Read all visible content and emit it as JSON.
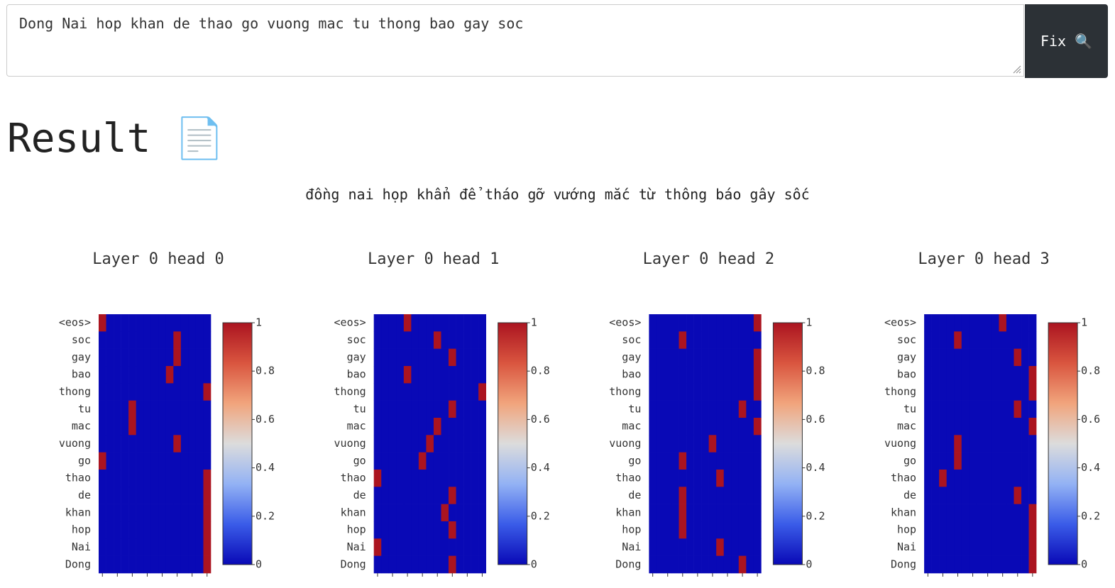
{
  "input": {
    "text": "Dong Nai hop khan de thao go vuong mac tu thong bao gay soc"
  },
  "button": {
    "label": "Fix 🔍"
  },
  "result": {
    "heading": "Result 📄",
    "text": "đồng nai họp khẩn để tháo gỡ vướng mắc từ thông báo gây sốc"
  },
  "colormap": [
    "#0909b6",
    "#3a5ce8",
    "#93b2f4",
    "#dcdcdc",
    "#f1a47c",
    "#d9553f",
    "#ab1420"
  ],
  "chart_data": [
    {
      "type": "heatmap",
      "title": "Layer 0 head 0",
      "y_categories": [
        "<eos>",
        "soc",
        "gay",
        "bao",
        "thong",
        "tu",
        "mac",
        "vuong",
        "go",
        "thao",
        "de",
        "khan",
        "hop",
        "Nai",
        "Dong"
      ],
      "values": [
        [
          1,
          0,
          0,
          0,
          0,
          0,
          0,
          0,
          0,
          0,
          0,
          0,
          0,
          0,
          0
        ],
        [
          0,
          0,
          0,
          0,
          0,
          0,
          0,
          0,
          0,
          0,
          1,
          0,
          0,
          0,
          0
        ],
        [
          0,
          0,
          0,
          0,
          0,
          0,
          0,
          0,
          0,
          0,
          1,
          0,
          0,
          0,
          0
        ],
        [
          0,
          0,
          0,
          0,
          0,
          0,
          0,
          0,
          0,
          1,
          0,
          0,
          0,
          0,
          0
        ],
        [
          0,
          0,
          0,
          0,
          0,
          0,
          0,
          0,
          0,
          0,
          0,
          0,
          0,
          0,
          1
        ],
        [
          0,
          0,
          0,
          0,
          1,
          0,
          0,
          0,
          0,
          0,
          0,
          0,
          0,
          0,
          0
        ],
        [
          0,
          0,
          0,
          0,
          1,
          0,
          0,
          0,
          0,
          0,
          0,
          0,
          0,
          0,
          0
        ],
        [
          0,
          0,
          0,
          0,
          0,
          0,
          0,
          0,
          0,
          0,
          1,
          0,
          0,
          0,
          0
        ],
        [
          1,
          0,
          0,
          0,
          0,
          0,
          0,
          0,
          0,
          0,
          0,
          0,
          0,
          0,
          0
        ],
        [
          0,
          0,
          0,
          0,
          0,
          0,
          0,
          0,
          0,
          0,
          0,
          0,
          0,
          0,
          1
        ],
        [
          0,
          0,
          0,
          0,
          0,
          0,
          0,
          0,
          0,
          0,
          0,
          0,
          0,
          0,
          1
        ],
        [
          0,
          0,
          0,
          0,
          0,
          0,
          0,
          0,
          0,
          0,
          0,
          0,
          0,
          0,
          1
        ],
        [
          0,
          0,
          0,
          0,
          0,
          0,
          0,
          0,
          0,
          0,
          0,
          0,
          0,
          0,
          1
        ],
        [
          0,
          0,
          0,
          0,
          0,
          0,
          0,
          0,
          0,
          0,
          0,
          0,
          0,
          0,
          1
        ],
        [
          0,
          0,
          0,
          0,
          0,
          0,
          0,
          0,
          0,
          0,
          0,
          0,
          0,
          0,
          1
        ]
      ],
      "clim": [
        0,
        1
      ],
      "colorbar_ticks": [
        0,
        0.2,
        0.4,
        0.6,
        0.8,
        1
      ]
    },
    {
      "type": "heatmap",
      "title": "Layer 0 head 1",
      "y_categories": [
        "<eos>",
        "soc",
        "gay",
        "bao",
        "thong",
        "tu",
        "mac",
        "vuong",
        "go",
        "thao",
        "de",
        "khan",
        "hop",
        "Nai",
        "Dong"
      ],
      "values": [
        [
          0,
          0,
          0,
          0,
          1,
          0,
          0,
          0,
          0,
          0,
          0,
          0,
          0,
          0,
          0
        ],
        [
          0,
          0,
          0,
          0,
          0,
          0,
          0,
          0,
          1,
          0,
          0,
          0,
          0,
          0,
          0
        ],
        [
          0,
          0,
          0,
          0,
          0,
          0,
          0,
          0,
          0,
          0,
          1,
          0,
          0,
          0,
          0
        ],
        [
          0,
          0,
          0,
          0,
          1,
          0,
          0,
          0,
          0,
          0,
          0,
          0,
          0,
          0,
          0
        ],
        [
          0,
          0,
          0,
          0,
          0,
          0,
          0,
          0,
          0,
          0,
          0,
          0,
          0,
          0,
          1
        ],
        [
          0,
          0,
          0,
          0,
          0,
          0,
          0,
          0,
          0,
          0,
          1,
          0,
          0,
          0,
          0
        ],
        [
          0,
          0,
          0,
          0,
          0,
          0,
          0,
          0,
          1,
          0,
          0,
          0,
          0,
          0,
          0
        ],
        [
          0,
          0,
          0,
          0,
          0,
          0,
          0,
          1,
          0,
          0,
          0,
          0,
          0,
          0,
          0
        ],
        [
          0,
          0,
          0,
          0,
          0,
          0,
          1,
          0,
          0,
          0,
          0,
          0,
          0,
          0,
          0
        ],
        [
          1,
          0,
          0,
          0,
          0,
          0,
          0,
          0,
          0,
          0,
          0,
          0,
          0,
          0,
          0
        ],
        [
          0,
          0,
          0,
          0,
          0,
          0,
          0,
          0,
          0,
          0,
          1,
          0,
          0,
          0,
          0
        ],
        [
          0,
          0,
          0,
          0,
          0,
          0,
          0,
          0,
          0,
          1,
          0,
          0,
          0,
          0,
          0
        ],
        [
          0,
          0,
          0,
          0,
          0,
          0,
          0,
          0,
          0,
          0,
          1,
          0,
          0,
          0,
          0
        ],
        [
          1,
          0,
          0,
          0,
          0,
          0,
          0,
          0,
          0,
          0,
          0,
          0,
          0,
          0,
          0
        ],
        [
          0,
          0,
          0,
          0,
          0,
          0,
          0,
          0,
          0,
          0,
          1,
          0,
          0,
          0,
          0
        ]
      ],
      "clim": [
        0,
        1
      ],
      "colorbar_ticks": [
        0,
        0.2,
        0.4,
        0.6,
        0.8,
        1
      ]
    },
    {
      "type": "heatmap",
      "title": "Layer 0 head 2",
      "y_categories": [
        "<eos>",
        "soc",
        "gay",
        "bao",
        "thong",
        "tu",
        "mac",
        "vuong",
        "go",
        "thao",
        "de",
        "khan",
        "hop",
        "Nai",
        "Dong"
      ],
      "values": [
        [
          0,
          0,
          0,
          0,
          0,
          0,
          0,
          0,
          0,
          0,
          0,
          0,
          0,
          0,
          1
        ],
        [
          0,
          0,
          0,
          0,
          1,
          0,
          0,
          0,
          0,
          0,
          0,
          0,
          0,
          0,
          0
        ],
        [
          0,
          0,
          0,
          0,
          0,
          0,
          0,
          0,
          0,
          0,
          0,
          0,
          0,
          0,
          1
        ],
        [
          0,
          0,
          0,
          0,
          0,
          0,
          0,
          0,
          0,
          0,
          0,
          0,
          0,
          0,
          1
        ],
        [
          0,
          0,
          0,
          0,
          0,
          0,
          0,
          0,
          0,
          0,
          0,
          0,
          0,
          0,
          1
        ],
        [
          0,
          0,
          0,
          0,
          0,
          0,
          0,
          0,
          0,
          0,
          0,
          0,
          1,
          0,
          0
        ],
        [
          0,
          0,
          0,
          0,
          0,
          0,
          0,
          0,
          0,
          0,
          0,
          0,
          0,
          0,
          1
        ],
        [
          0,
          0,
          0,
          0,
          0,
          0,
          0,
          0,
          1,
          0,
          0,
          0,
          0,
          0,
          0
        ],
        [
          0,
          0,
          0,
          0,
          1,
          0,
          0,
          0,
          0,
          0,
          0,
          0,
          0,
          0,
          0
        ],
        [
          0,
          0,
          0,
          0,
          0,
          0,
          0,
          0,
          0,
          1,
          0,
          0,
          0,
          0,
          0
        ],
        [
          0,
          0,
          0,
          0,
          1,
          0,
          0,
          0,
          0,
          0,
          0,
          0,
          0,
          0,
          0
        ],
        [
          0,
          0,
          0,
          0,
          1,
          0,
          0,
          0,
          0,
          0,
          0,
          0,
          0,
          0,
          0
        ],
        [
          0,
          0,
          0,
          0,
          1,
          0,
          0,
          0,
          0,
          0,
          0,
          0,
          0,
          0,
          0
        ],
        [
          0,
          0,
          0,
          0,
          0,
          0,
          0,
          0,
          0,
          1,
          0,
          0,
          0,
          0,
          0
        ],
        [
          0,
          0,
          0,
          0,
          0,
          0,
          0,
          0,
          0,
          0,
          0,
          0,
          1,
          0,
          0
        ]
      ],
      "clim": [
        0,
        1
      ],
      "colorbar_ticks": [
        0,
        0.2,
        0.4,
        0.6,
        0.8,
        1
      ]
    },
    {
      "type": "heatmap",
      "title": "Layer 0 head 3",
      "y_categories": [
        "<eos>",
        "soc",
        "gay",
        "bao",
        "thong",
        "tu",
        "mac",
        "vuong",
        "go",
        "thao",
        "de",
        "khan",
        "hop",
        "Nai",
        "Dong"
      ],
      "values": [
        [
          0,
          0,
          0,
          0,
          0,
          0,
          0,
          0,
          0,
          0,
          1,
          0,
          0,
          0,
          0
        ],
        [
          0,
          0,
          0,
          0,
          1,
          0,
          0,
          0,
          0,
          0,
          0,
          0,
          0,
          0,
          0
        ],
        [
          0,
          0,
          0,
          0,
          0,
          0,
          0,
          0,
          0,
          0,
          0,
          0,
          1,
          0,
          0
        ],
        [
          0,
          0,
          0,
          0,
          0,
          0,
          0,
          0,
          0,
          0,
          0,
          0,
          0,
          0,
          1
        ],
        [
          0,
          0,
          0,
          0,
          0,
          0,
          0,
          0,
          0,
          0,
          0,
          0,
          0,
          0,
          1
        ],
        [
          0,
          0,
          0,
          0,
          0,
          0,
          0,
          0,
          0,
          0,
          0,
          0,
          1,
          0,
          0
        ],
        [
          0,
          0,
          0,
          0,
          0,
          0,
          0,
          0,
          0,
          0,
          0,
          0,
          0,
          0,
          1
        ],
        [
          0,
          0,
          0,
          0,
          1,
          0,
          0,
          0,
          0,
          0,
          0,
          0,
          0,
          0,
          0
        ],
        [
          0,
          0,
          0,
          0,
          1,
          0,
          0,
          0,
          0,
          0,
          0,
          0,
          0,
          0,
          0
        ],
        [
          0,
          0,
          1,
          0,
          0,
          0,
          0,
          0,
          0,
          0,
          0,
          0,
          0,
          0,
          0
        ],
        [
          0,
          0,
          0,
          0,
          0,
          0,
          0,
          0,
          0,
          0,
          0,
          0,
          1,
          0,
          0
        ],
        [
          0,
          0,
          0,
          0,
          0,
          0,
          0,
          0,
          0,
          0,
          0,
          0,
          0,
          0,
          1
        ],
        [
          0,
          0,
          0,
          0,
          0,
          0,
          0,
          0,
          0,
          0,
          0,
          0,
          0,
          0,
          1
        ],
        [
          0,
          0,
          0,
          0,
          0,
          0,
          0,
          0,
          0,
          0,
          0,
          0,
          0,
          0,
          1
        ],
        [
          0,
          0,
          0,
          0,
          0,
          0,
          0,
          0,
          0,
          0,
          0,
          0,
          0,
          0,
          1
        ]
      ],
      "clim": [
        0,
        1
      ],
      "colorbar_ticks": [
        0,
        0.2,
        0.4,
        0.6,
        0.8,
        1
      ]
    }
  ]
}
